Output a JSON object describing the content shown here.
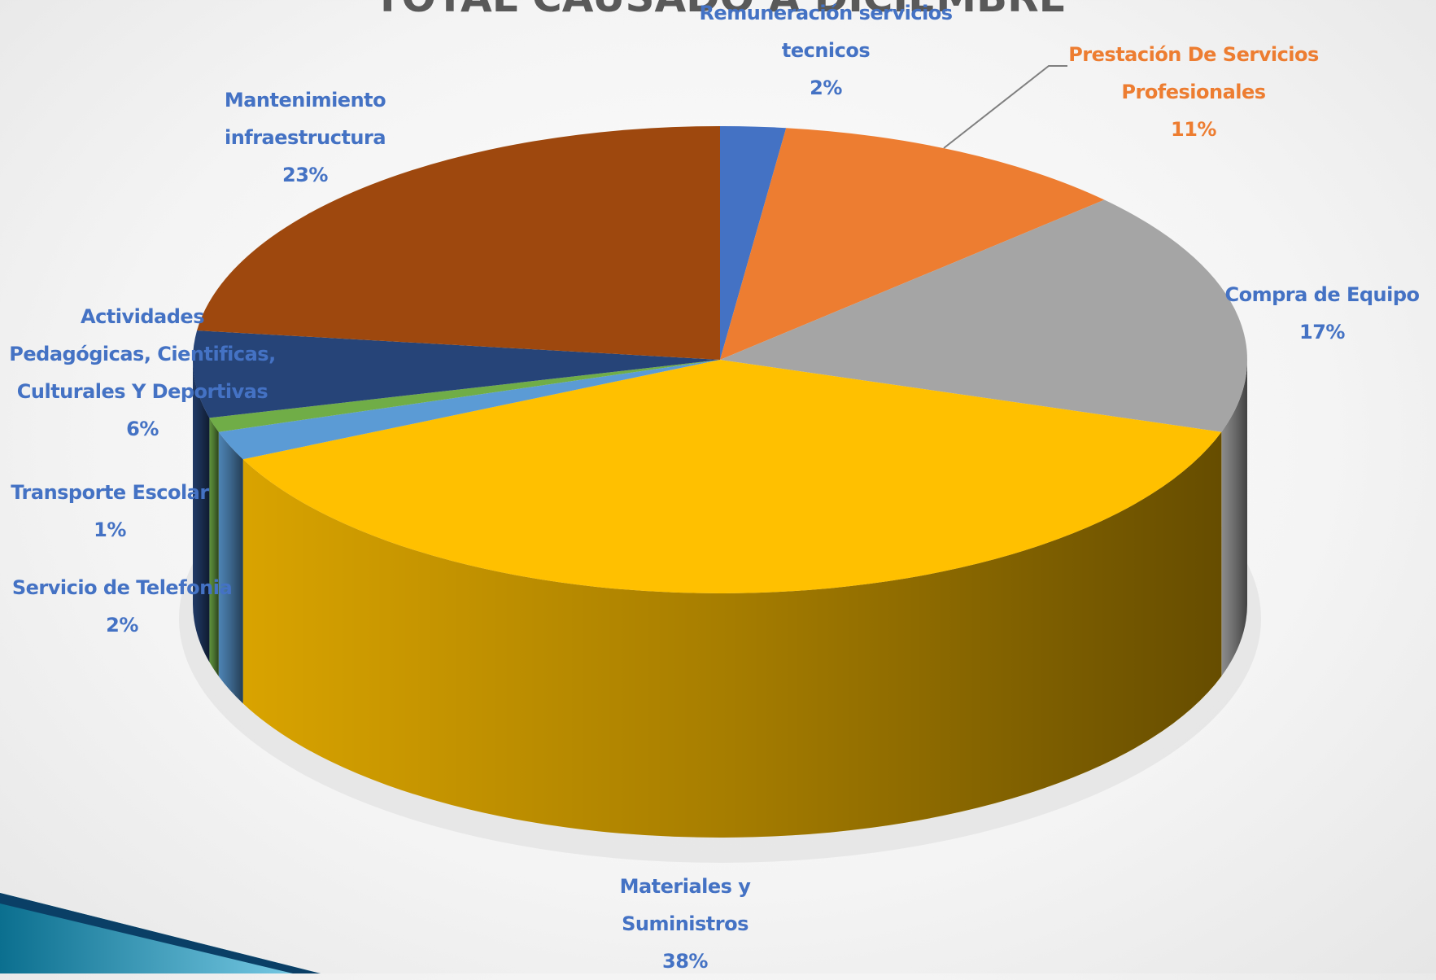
{
  "chart_data": {
    "type": "pie3d",
    "title": "TOTAL CAUSADO A DICIEMBRE",
    "categories": [
      "Remuneración servicios tecnicos",
      "Prestación De Servicios Profesionales",
      "Compra de Equipo",
      "Materiales y Suministros",
      "Servicio de Telefonia",
      "Transporte Escolar",
      "Actividades Pedagógicas, Cientificas, Culturales Y Deportivas",
      "Mantenimiento infraestructura"
    ],
    "values": [
      2,
      11,
      17,
      38,
      2,
      1,
      6,
      23
    ],
    "value_labels": [
      "2%",
      "11%",
      "17%",
      "38%",
      "2%",
      "1%",
      "6%",
      "23%"
    ],
    "colors": [
      "#4472c4",
      "#ed7d31",
      "#a5a5a5",
      "#ffc000",
      "#5b9bd5",
      "#70ad47",
      "#264478",
      "#9e480e"
    ]
  }
}
